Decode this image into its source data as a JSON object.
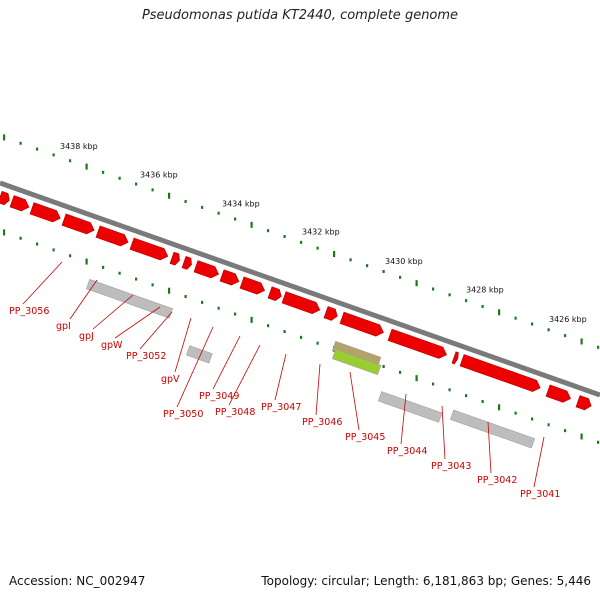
{
  "title": "Pseudomonas putida KT2440, complete genome",
  "accession_text": "Accession: NC_002947",
  "topology_text": "Topology: circular; Length: 6,181,863 bp; Genes: 5,446",
  "colors": {
    "backbone": "#7a7a7a",
    "gene": "#ee0000",
    "gene_dark": "#b00000",
    "feature_grey": "#bdbdbd",
    "feature_green": "#9acd32",
    "tick": "#1a7a1a",
    "label": "#cc0000"
  },
  "kbp_labels": [
    "3438 kbp",
    "3436 kbp",
    "3434 kbp",
    "3432 kbp",
    "3430 kbp",
    "3428 kbp",
    "3426 kbp"
  ],
  "gene_labels": [
    "PP_3056",
    "gpI",
    "gpJ",
    "gpW",
    "PP_3052",
    "gpV",
    "PP_3050",
    "PP_3049",
    "PP_3048",
    "PP_3047",
    "PP_3046",
    "PP_3045",
    "PP_3044",
    "PP_3043",
    "PP_3042",
    "PP_3041"
  ]
}
